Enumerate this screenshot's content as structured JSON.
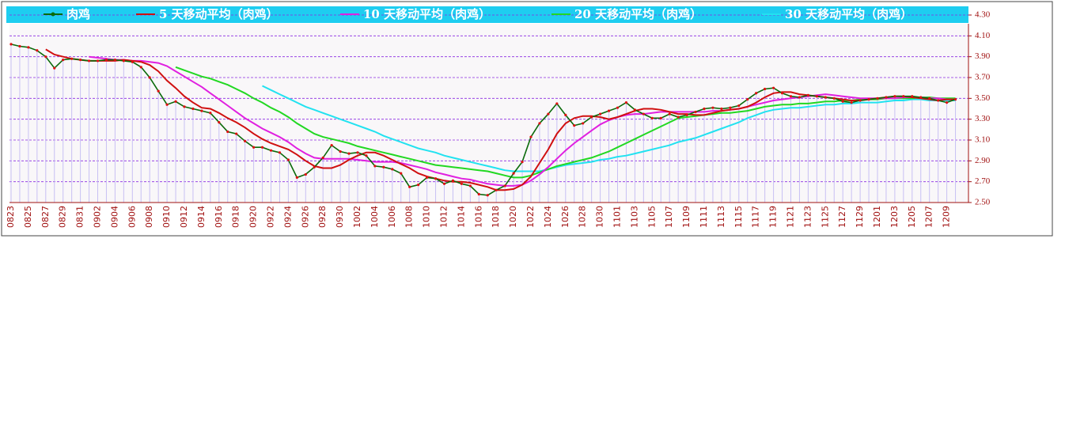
{
  "chart_data": {
    "type": "line",
    "categories": [
      "0823",
      null,
      "0825",
      null,
      "0827",
      null,
      "0829",
      null,
      "0831",
      null,
      "0902",
      null,
      "0904",
      null,
      "0906",
      null,
      "0908",
      null,
      "0910",
      null,
      "0912",
      null,
      "0914",
      null,
      "0916",
      null,
      "0918",
      null,
      "0920",
      null,
      "0922",
      null,
      "0924",
      null,
      "0926",
      null,
      "0928",
      null,
      "0930",
      null,
      "1002",
      null,
      "1004",
      null,
      "1006",
      null,
      "1008",
      null,
      "1010",
      null,
      "1012",
      null,
      "1014",
      null,
      "1016",
      null,
      "1018",
      null,
      "1020",
      null,
      "1022",
      null,
      "1024",
      null,
      "1026",
      null,
      "1028",
      null,
      "1030",
      null,
      "1101",
      null,
      "1103",
      null,
      "1105",
      null,
      "1107",
      null,
      "1109",
      null,
      "1111",
      null,
      "1113",
      null,
      "1115",
      null,
      "1117",
      null,
      "1119",
      null,
      "1121",
      null,
      "1123",
      null,
      "1125",
      null,
      "1127",
      null,
      "1129",
      null,
      "1201",
      null,
      "1203",
      null,
      "1205",
      null,
      "1207",
      null,
      "1209",
      null
    ],
    "series": [
      {
        "name": "肉鸡",
        "color": "#0a6a0a",
        "marker_color": "#e01010",
        "values": [
          4.02,
          4.0,
          3.99,
          3.96,
          3.9,
          3.79,
          3.87,
          3.88,
          3.87,
          3.86,
          3.86,
          3.87,
          3.87,
          3.86,
          3.85,
          3.8,
          3.7,
          3.57,
          3.44,
          3.47,
          3.42,
          3.4,
          3.38,
          3.36,
          3.27,
          3.18,
          3.16,
          3.09,
          3.03,
          3.03,
          3.0,
          2.98,
          2.91,
          2.74,
          2.77,
          2.84,
          2.93,
          3.05,
          2.99,
          2.97,
          2.98,
          2.95,
          2.85,
          2.84,
          2.82,
          2.78,
          2.65,
          2.67,
          2.74,
          2.73,
          2.68,
          2.71,
          2.68,
          2.66,
          2.58,
          2.57,
          2.62,
          2.66,
          2.78,
          2.89,
          3.13,
          3.26,
          3.35,
          3.45,
          3.34,
          3.24,
          3.26,
          3.32,
          3.35,
          3.38,
          3.41,
          3.46,
          3.39,
          3.35,
          3.31,
          3.31,
          3.35,
          3.32,
          3.34,
          3.37,
          3.4,
          3.41,
          3.4,
          3.41,
          3.43,
          3.49,
          3.55,
          3.59,
          3.6,
          3.55,
          3.52,
          3.51,
          3.53,
          3.52,
          3.51,
          3.5,
          3.47,
          3.46,
          3.48,
          3.49,
          3.5,
          3.51,
          3.52,
          3.52,
          3.52,
          3.51,
          3.5,
          3.48,
          3.46,
          3.49
        ]
      },
      {
        "name": "5 天移动平均（肉鸡）",
        "color": "#d01010",
        "values": [
          null,
          null,
          null,
          null,
          3.97,
          3.92,
          3.9,
          3.88,
          3.87,
          3.86,
          3.86,
          3.86,
          3.86,
          3.87,
          3.86,
          3.85,
          3.82,
          3.76,
          3.67,
          3.6,
          3.52,
          3.46,
          3.41,
          3.4,
          3.36,
          3.31,
          3.27,
          3.22,
          3.16,
          3.11,
          3.07,
          3.04,
          3.01,
          2.96,
          2.9,
          2.85,
          2.83,
          2.83,
          2.86,
          2.91,
          2.95,
          2.98,
          2.98,
          2.95,
          2.91,
          2.87,
          2.83,
          2.78,
          2.75,
          2.73,
          2.71,
          2.7,
          2.7,
          2.69,
          2.67,
          2.65,
          2.62,
          2.62,
          2.63,
          2.67,
          2.75,
          2.88,
          3.01,
          3.16,
          3.26,
          3.31,
          3.33,
          3.33,
          3.32,
          3.3,
          3.32,
          3.35,
          3.38,
          3.4,
          3.4,
          3.39,
          3.37,
          3.35,
          3.35,
          3.34,
          3.34,
          3.36,
          3.38,
          3.39,
          3.4,
          3.42,
          3.46,
          3.51,
          3.55,
          3.56,
          3.56,
          3.54,
          3.53,
          3.52,
          3.51,
          3.5,
          3.49,
          3.48,
          3.48,
          3.49,
          3.5,
          3.51,
          3.52,
          3.52,
          3.51,
          3.5,
          3.49,
          3.48,
          3.49,
          3.49
        ]
      },
      {
        "name": "10 天移动平均（肉鸡）",
        "color": "#e020e0",
        "values": [
          null,
          null,
          null,
          null,
          null,
          null,
          null,
          null,
          null,
          3.9,
          3.89,
          3.88,
          3.87,
          3.87,
          3.86,
          3.86,
          3.85,
          3.84,
          3.81,
          3.76,
          3.71,
          3.66,
          3.61,
          3.55,
          3.49,
          3.43,
          3.37,
          3.31,
          3.26,
          3.21,
          3.17,
          3.13,
          3.08,
          3.02,
          2.97,
          2.93,
          2.92,
          2.92,
          2.92,
          2.92,
          2.91,
          2.9,
          2.89,
          2.89,
          2.89,
          2.88,
          2.86,
          2.84,
          2.82,
          2.79,
          2.77,
          2.75,
          2.73,
          2.72,
          2.7,
          2.68,
          2.67,
          2.66,
          2.66,
          2.67,
          2.71,
          2.77,
          2.84,
          2.92,
          3.0,
          3.07,
          3.13,
          3.19,
          3.25,
          3.29,
          3.32,
          3.34,
          3.35,
          3.35,
          3.36,
          3.37,
          3.37,
          3.37,
          3.37,
          3.37,
          3.37,
          3.38,
          3.38,
          3.39,
          3.4,
          3.42,
          3.44,
          3.46,
          3.48,
          3.49,
          3.5,
          3.51,
          3.52,
          3.53,
          3.54,
          3.53,
          3.52,
          3.51,
          3.5,
          3.5,
          3.5,
          3.5,
          3.5,
          3.51,
          3.51,
          3.51,
          3.5,
          3.5,
          3.49,
          3.49
        ]
      },
      {
        "name": "20 天移动平均（肉鸡）",
        "color": "#22d822",
        "values": [
          null,
          null,
          null,
          null,
          null,
          null,
          null,
          null,
          null,
          null,
          null,
          null,
          null,
          null,
          null,
          null,
          null,
          null,
          null,
          3.8,
          3.77,
          3.74,
          3.71,
          3.69,
          3.66,
          3.63,
          3.59,
          3.55,
          3.5,
          3.46,
          3.41,
          3.37,
          3.32,
          3.26,
          3.21,
          3.16,
          3.13,
          3.11,
          3.09,
          3.07,
          3.04,
          3.02,
          3.0,
          2.98,
          2.96,
          2.94,
          2.92,
          2.9,
          2.88,
          2.86,
          2.85,
          2.84,
          2.83,
          2.82,
          2.81,
          2.8,
          2.78,
          2.76,
          2.74,
          2.74,
          2.76,
          2.79,
          2.82,
          2.85,
          2.87,
          2.89,
          2.91,
          2.93,
          2.96,
          2.99,
          3.03,
          3.07,
          3.11,
          3.15,
          3.19,
          3.23,
          3.27,
          3.31,
          3.32,
          3.33,
          3.34,
          3.35,
          3.36,
          3.36,
          3.37,
          3.38,
          3.4,
          3.42,
          3.43,
          3.44,
          3.44,
          3.45,
          3.45,
          3.46,
          3.47,
          3.47,
          3.48,
          3.48,
          3.49,
          3.49,
          3.49,
          3.5,
          3.5,
          3.5,
          3.5,
          3.51,
          3.51,
          3.5,
          3.5,
          3.5
        ]
      },
      {
        "name": "30 天移动平均（肉鸡）",
        "color": "#22e2f0",
        "values": [
          null,
          null,
          null,
          null,
          null,
          null,
          null,
          null,
          null,
          null,
          null,
          null,
          null,
          null,
          null,
          null,
          null,
          null,
          null,
          null,
          null,
          null,
          null,
          null,
          null,
          null,
          null,
          null,
          null,
          3.62,
          3.58,
          3.54,
          3.5,
          3.46,
          3.42,
          3.39,
          3.36,
          3.33,
          3.3,
          3.27,
          3.24,
          3.21,
          3.18,
          3.14,
          3.11,
          3.08,
          3.05,
          3.02,
          3.0,
          2.98,
          2.95,
          2.93,
          2.91,
          2.89,
          2.87,
          2.85,
          2.83,
          2.81,
          2.8,
          2.8,
          2.8,
          2.8,
          2.82,
          2.84,
          2.86,
          2.87,
          2.88,
          2.89,
          2.91,
          2.92,
          2.94,
          2.95,
          2.97,
          2.99,
          3.01,
          3.03,
          3.05,
          3.08,
          3.1,
          3.12,
          3.15,
          3.18,
          3.21,
          3.24,
          3.27,
          3.31,
          3.34,
          3.37,
          3.39,
          3.4,
          3.41,
          3.41,
          3.42,
          3.43,
          3.44,
          3.44,
          3.45,
          3.45,
          3.46,
          3.46,
          3.46,
          3.47,
          3.48,
          3.48,
          3.49,
          3.49,
          3.48,
          3.48,
          3.48,
          3.48
        ]
      }
    ],
    "ylim": [
      2.5,
      4.3
    ],
    "yticks": [
      {
        "value": 2.5,
        "label": "2.50"
      },
      {
        "value": 2.7,
        "label": "2.70"
      },
      {
        "value": 2.9,
        "label": "2.90"
      },
      {
        "value": 3.1,
        "label": "3.10"
      },
      {
        "value": 3.3,
        "label": "3.30"
      },
      {
        "value": 3.5,
        "label": "3.50"
      },
      {
        "value": 3.7,
        "label": "3.70"
      },
      {
        "value": 3.9,
        "label": "3.90"
      },
      {
        "value": 4.1,
        "label": "4.10"
      },
      {
        "value": 4.3,
        "label": "4.30"
      }
    ],
    "grid": true,
    "legend": "top",
    "drop_lines": true
  }
}
